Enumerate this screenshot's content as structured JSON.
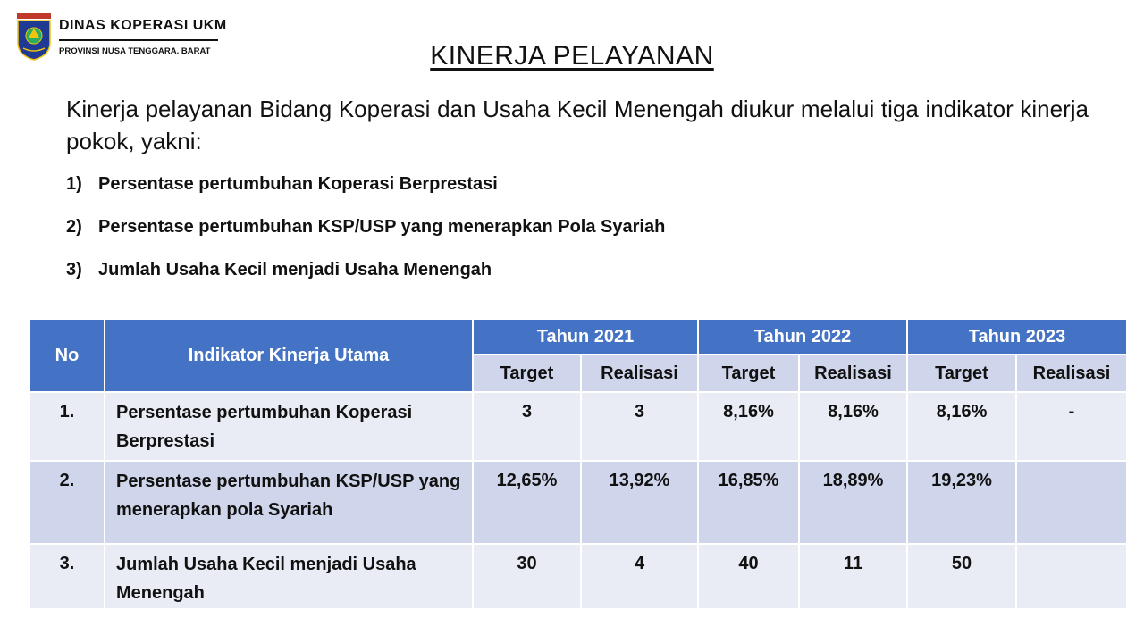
{
  "header": {
    "org_name": "DINAS KOPERASI UKM",
    "org_sub": "PROVINSI NUSA TENGGARA. BARAT",
    "logo_icon": "ntb-provincial-seal"
  },
  "title": "KINERJA PELAYANAN",
  "intro": "Kinerja pelayanan Bidang Koperasi dan Usaha Kecil Menengah diukur melalui tiga indikator kinerja pokok, yakni:",
  "indicators": [
    {
      "num": "1)",
      "text": "Persentase pertumbuhan Koperasi Berprestasi"
    },
    {
      "num": "2)",
      "text": "Persentase pertumbuhan KSP/USP yang menerapkan Pola Syariah"
    },
    {
      "num": "3)",
      "text": "Jumlah Usaha Kecil  menjadi Usaha Menengah"
    }
  ],
  "table": {
    "headers": {
      "no": "No",
      "indicator": "Indikator Kinerja Utama",
      "years": [
        "Tahun 2021",
        "Tahun 2022",
        "Tahun 2023"
      ],
      "target": "Target",
      "realisasi": "Realisasi"
    },
    "rows": [
      {
        "no": "1.",
        "indicator": "Persentase pertumbuhan Koperasi Berprestasi",
        "values": [
          "3",
          "3",
          "8,16%",
          "8,16%",
          "8,16%",
          "-"
        ]
      },
      {
        "no": "2.",
        "indicator": "Persentase pertumbuhan KSP/USP yang menerapkan pola Syariah",
        "values": [
          "12,65%",
          "13,92%",
          "16,85%",
          "18,89%",
          "19,23%",
          ""
        ]
      },
      {
        "no": "3.",
        "indicator": "Jumlah Usaha Kecil menjadi Usaha Menengah",
        "values": [
          "30",
          "4",
          "40",
          "11",
          "50",
          ""
        ]
      }
    ]
  },
  "colors": {
    "header_blue": "#4472c4",
    "subheader": "#cfd5ea",
    "row_light": "#e9ebf5"
  }
}
